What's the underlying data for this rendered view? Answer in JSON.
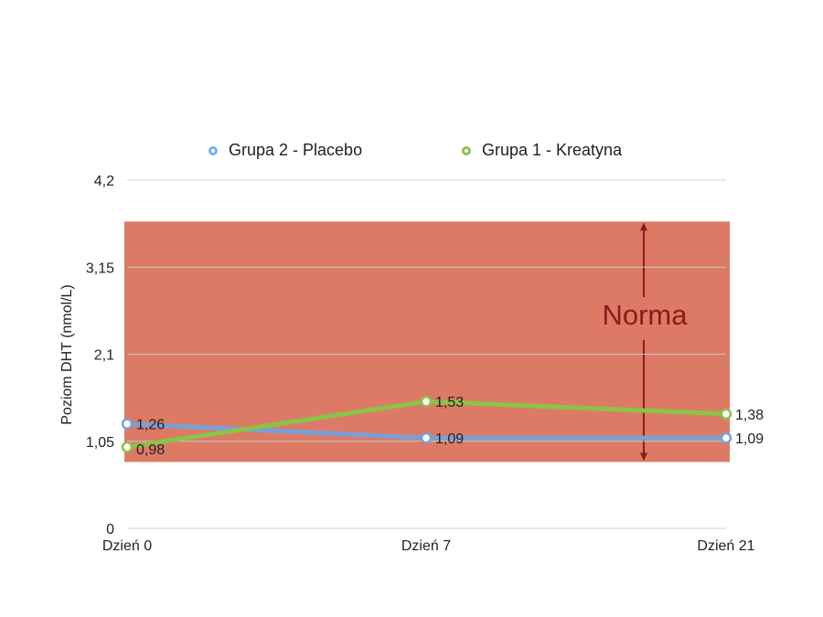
{
  "chart_data": {
    "type": "line",
    "categories": [
      "Dzień 0",
      "Dzień 7",
      "Dzień 21"
    ],
    "series": [
      {
        "name": "Grupa 2 - Placebo",
        "values": [
          1.26,
          1.09,
          1.09
        ],
        "labels": [
          "1,26",
          "1,09",
          "1,09"
        ],
        "color": "#7a9fd8"
      },
      {
        "name": "Grupa 1 - Kreatyna",
        "values": [
          0.98,
          1.53,
          1.38
        ],
        "labels": [
          "0,98",
          "1,53",
          "1,38"
        ],
        "color": "#8bc34a"
      }
    ],
    "ylabel": "Poziom DHT (nmol/L)",
    "ylim": [
      0,
      4.2
    ],
    "yticks": [
      0,
      1.05,
      2.1,
      3.15,
      4.2
    ],
    "ytick_labels": [
      "0",
      "1,05",
      "2,1",
      "3,15",
      "4,2"
    ],
    "grid": true,
    "legend_position": "top",
    "norm_band": {
      "label": "Norma",
      "from": 0.8,
      "to": 3.7,
      "color": "#dc7a66",
      "text_color": "#8b1a1a"
    }
  }
}
